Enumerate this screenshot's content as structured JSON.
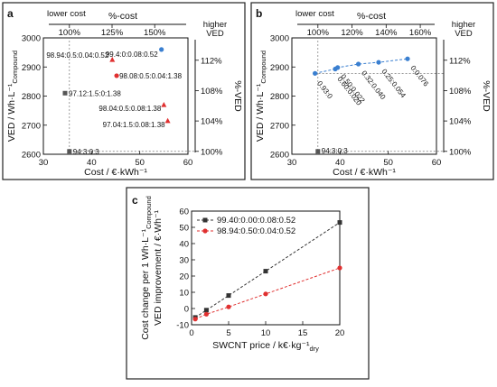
{
  "chart_data": [
    {
      "panel": "a",
      "type": "scatter",
      "xlabel": "Cost / €·kWh⁻¹",
      "ylabel": "VED / Wh·L⁻¹Compound",
      "xlim": [
        30,
        60
      ],
      "ylim": [
        2600,
        3000
      ],
      "x_ticks": [
        "30",
        "40",
        "50",
        "60"
      ],
      "y_ticks": [
        "2600",
        "2700",
        "2800",
        "2900",
        "3000"
      ],
      "top_axis": {
        "title": "%-cost",
        "ticks": [
          "100%",
          "125%",
          "150%"
        ],
        "values": [
          35.4,
          44.25,
          53.1
        ],
        "note": "lower cost"
      },
      "right_axis": {
        "title": "%-VED",
        "ticks": [
          "100%",
          "104%",
          "108%",
          "112%"
        ],
        "values": [
          2610,
          2714.4,
          2818.8,
          2923.2
        ],
        "note": "higher VED"
      },
      "points": [
        {
          "label": "94:3:0:3",
          "x": 35.4,
          "y": 2610,
          "color": "#555555",
          "marker": "square"
        },
        {
          "label": "97.12:1.5:0:1.38",
          "x": 34.5,
          "y": 2810,
          "color": "#555555",
          "marker": "square"
        },
        {
          "label": "98.94:0.5:0.04:0.52",
          "x": 44.3,
          "y": 2925,
          "color": "#e03030",
          "marker": "triangle"
        },
        {
          "label": "99.4:0:0.08:0.52",
          "x": 54.5,
          "y": 2960,
          "color": "#3a7fd0",
          "marker": "circle"
        },
        {
          "label": "98.08:0.5:0.04:1.38",
          "x": 45.2,
          "y": 2870,
          "color": "#e03030",
          "marker": "circle"
        },
        {
          "label": "98.04:0.5:0.08:1.38",
          "x": 55.0,
          "y": 2770,
          "color": "#e03030",
          "marker": "triangle"
        },
        {
          "label": "97.04:1.5:0.08:1.38",
          "x": 55.8,
          "y": 2715,
          "color": "#e03030",
          "marker": "triangle"
        }
      ]
    },
    {
      "panel": "b",
      "type": "scatter",
      "xlabel": "Cost / €·kWh⁻¹",
      "ylabel": "VED / Wh·L⁻¹Compound",
      "xlim": [
        30,
        60
      ],
      "ylim": [
        2600,
        3000
      ],
      "x_ticks": [
        "30",
        "40",
        "50",
        "60"
      ],
      "y_ticks": [
        "2600",
        "2700",
        "2800",
        "2900",
        "3000"
      ],
      "top_axis": {
        "title": "%-cost",
        "ticks": [
          "100%",
          "120%",
          "140%",
          "160%"
        ],
        "values": [
          35.4,
          42.48,
          49.56,
          56.64
        ],
        "note": "lower cost"
      },
      "right_axis": {
        "title": "%-VED",
        "ticks": [
          "100%",
          "104%",
          "108%",
          "112%"
        ],
        "values": [
          2610,
          2714.4,
          2818.8,
          2923.2
        ],
        "note": "higher VED"
      },
      "points": [
        {
          "label": "94:3:0:3",
          "x": 35.4,
          "y": 2610,
          "color": "#555555",
          "marker": "square"
        },
        {
          "label": "0.93:0",
          "x": 34.8,
          "y": 2878,
          "color": "#3a7fd0",
          "marker": "circle"
        },
        {
          "label": "0.60:0.020",
          "x": 39.0,
          "y": 2893,
          "color": "#3a7fd0",
          "marker": "circle"
        },
        {
          "label": "0.50:0.022",
          "x": 39.5,
          "y": 2898,
          "color": "#3a7fd0",
          "marker": "circle"
        },
        {
          "label": "0.32:0.040",
          "x": 43.8,
          "y": 2910,
          "color": "#3a7fd0",
          "marker": "circle"
        },
        {
          "label": "0.25:0.054",
          "x": 48.0,
          "y": 2916,
          "color": "#3a7fd0",
          "marker": "circle"
        },
        {
          "label": "0:0.076",
          "x": 54.0,
          "y": 2928,
          "color": "#3a7fd0",
          "marker": "circle"
        }
      ]
    },
    {
      "panel": "c",
      "type": "line",
      "xlabel": "SWCNT price / k€·kg⁻¹dry",
      "ylabel": "Cost change per 1 Wh·L⁻¹Compound VED improvement / €·Wh⁻¹",
      "xlim": [
        0,
        20
      ],
      "ylim": [
        -10,
        60
      ],
      "x_ticks": [
        "0",
        "5",
        "10",
        "15",
        "20"
      ],
      "y_ticks": [
        "-10",
        "0",
        "10",
        "20",
        "30",
        "40",
        "50",
        "60"
      ],
      "series": [
        {
          "name": "99.40:0.00:0.08:0.52",
          "color": "#333333",
          "marker": "square",
          "x": [
            0.5,
            2,
            5,
            10,
            20
          ],
          "values": [
            -5.5,
            -1,
            8,
            23,
            53
          ]
        },
        {
          "name": "98.94:0.50:0.04:0.52",
          "color": "#e03030",
          "marker": "circle",
          "x": [
            0.5,
            2,
            5,
            10,
            20
          ],
          "values": [
            -6.5,
            -3.5,
            1,
            9,
            25
          ]
        }
      ]
    }
  ]
}
